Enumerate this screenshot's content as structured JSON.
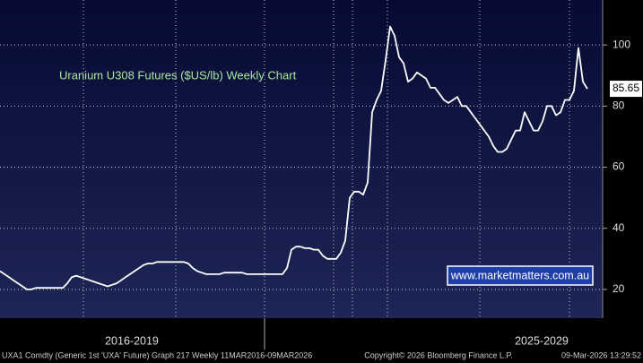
{
  "chart_data": {
    "type": "line",
    "title": "Uranium U308 Futures ($US/lb) Weekly Chart",
    "watermark": "www.marketmatters.com.au",
    "period_labels": [
      "2016-2019",
      "2025-2029"
    ],
    "footer_left": "UXA1 Comdty (Generic 1st 'UXA' Future) Graph 217 Weekly 11MAR2016-09MAR2026",
    "footer_center": "Copyright© 2026 Bloomberg Finance L.P.",
    "footer_right": "09-Mar-2026 13:29:52",
    "last_value_label": "85.65",
    "ylim": [
      10.6,
      114.7
    ],
    "yticks": [
      20,
      40,
      60,
      80,
      100
    ],
    "grid": true,
    "y_axis_side": "right",
    "series": [
      {
        "color": "#ffffff",
        "values": [
          26,
          25,
          24,
          23,
          22,
          21,
          20,
          20,
          20.5,
          20.5,
          20.5,
          20.5,
          20.5,
          20.5,
          20.5,
          22,
          24,
          24.5,
          24,
          23.5,
          23,
          22.5,
          22,
          21.5,
          21,
          21.5,
          22,
          23,
          24,
          25,
          26,
          27,
          28,
          28.5,
          28.5,
          29,
          29,
          29,
          29,
          29,
          29,
          29,
          28.5,
          27,
          26,
          25.5,
          25,
          25,
          25,
          25,
          25.5,
          25.5,
          25.5,
          25.5,
          25.5,
          25,
          25,
          25,
          25,
          25,
          25,
          25,
          25,
          25,
          27,
          33,
          34,
          34,
          33.5,
          33.5,
          33,
          33,
          31,
          30,
          30,
          30,
          32,
          36,
          50,
          52,
          52,
          51,
          55,
          78,
          82,
          85,
          95,
          106,
          103,
          96,
          94,
          88,
          89,
          91,
          90,
          89,
          86,
          86,
          84,
          82,
          81,
          82,
          83,
          80,
          80,
          78,
          76,
          74,
          72,
          70,
          67,
          65,
          65,
          66,
          69,
          72,
          72,
          78,
          75,
          72,
          72,
          75,
          80,
          80,
          77,
          78,
          82,
          82,
          85,
          99,
          88,
          85.65
        ]
      }
    ]
  }
}
